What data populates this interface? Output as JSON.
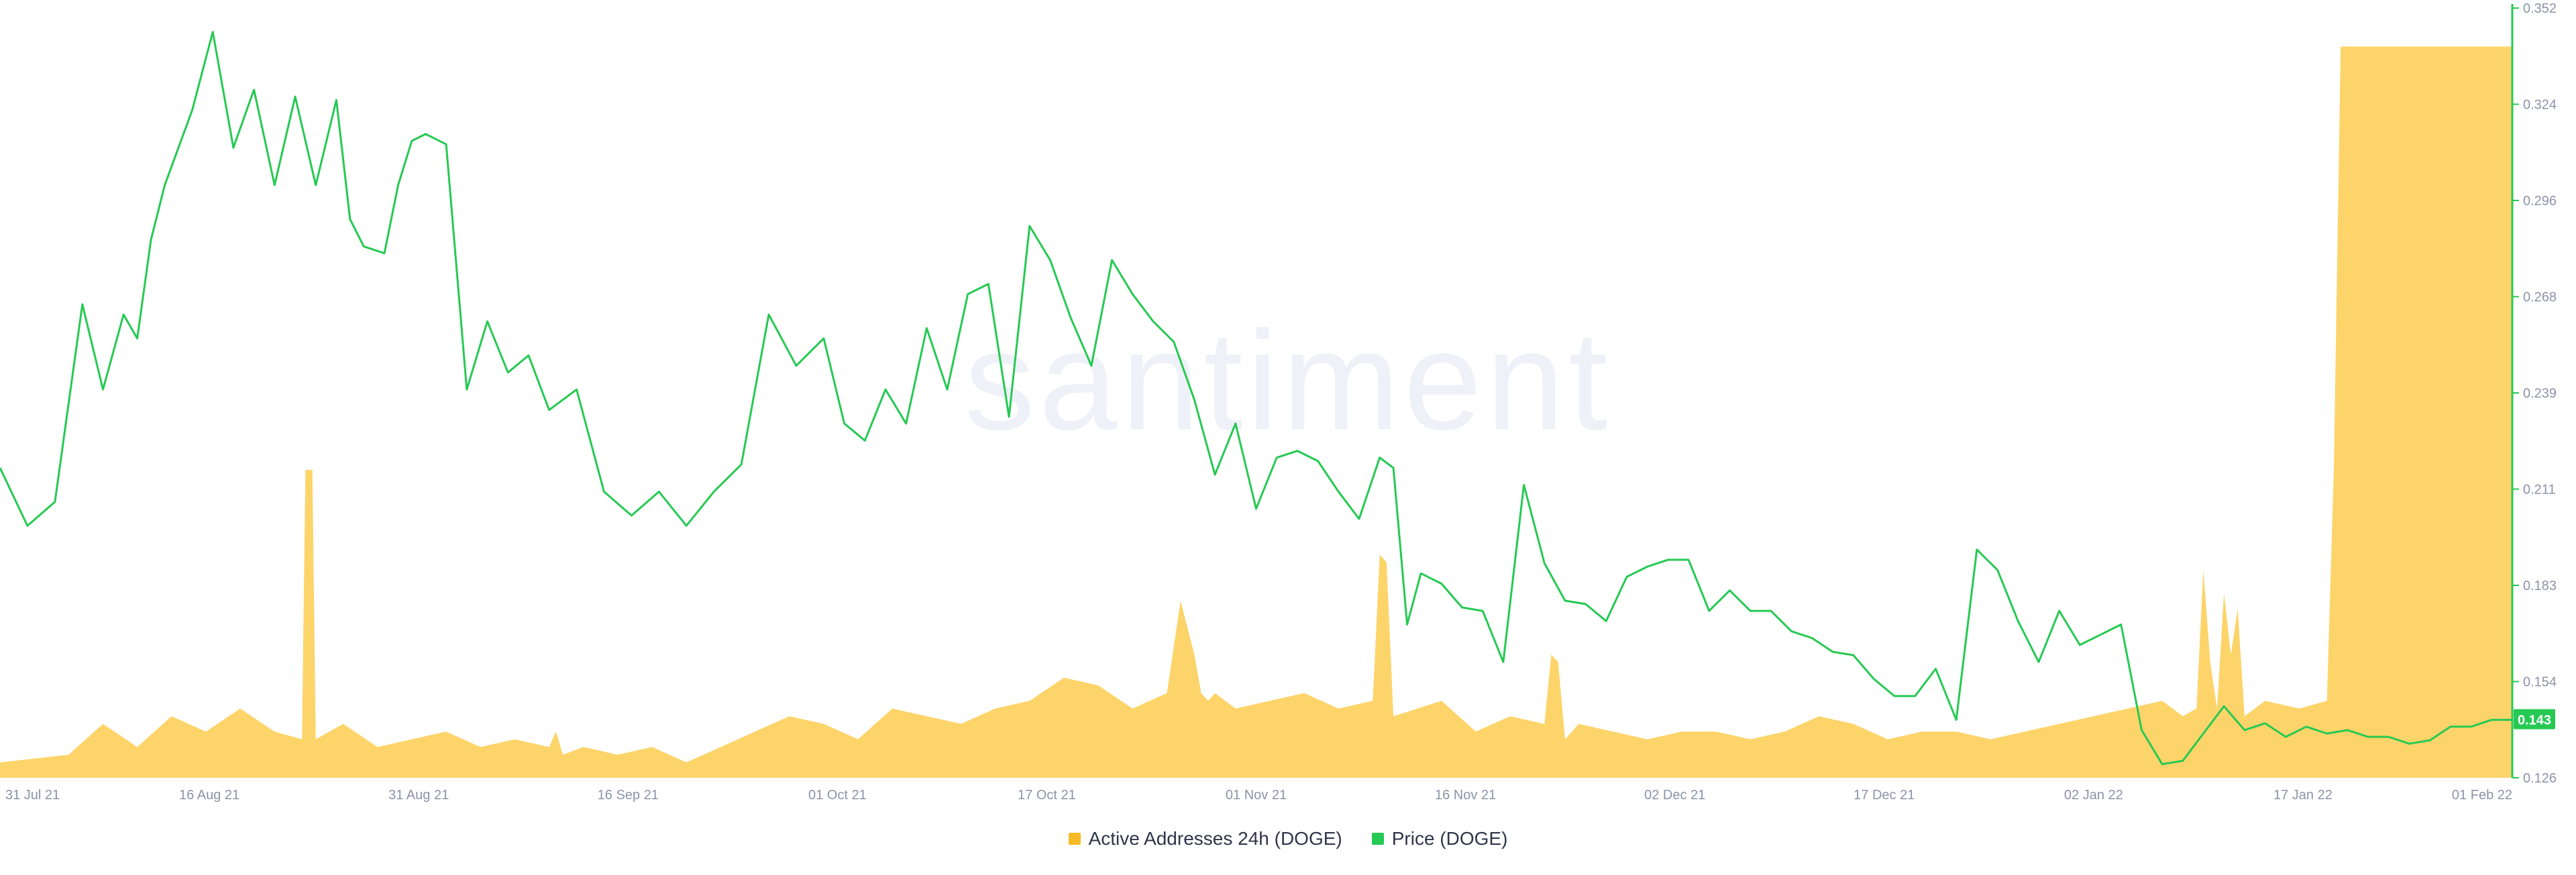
{
  "chart_data": {
    "type": "area",
    "watermark": "santiment",
    "x_ticks": [
      "31 Jul 21",
      "16 Aug 21",
      "31 Aug 21",
      "16 Sep 21",
      "01 Oct 21",
      "17 Oct 21",
      "01 Nov 21",
      "16 Nov 21",
      "02 Dec 21",
      "17 Dec 21",
      "02 Jan 22",
      "17 Jan 22",
      "01 Feb 22"
    ],
    "y_right_ticks": [
      "0.352",
      "0.324",
      "0.296",
      "0.268",
      "0.239",
      "0.211",
      "0.183",
      "0.154",
      "0.126"
    ],
    "y_right_range": [
      0.126,
      0.352
    ],
    "active_addresses_ylim": [
      0,
      100
    ],
    "current_price_label": "0.143",
    "legend": [
      {
        "label": "Active Addresses 24h (DOGE)",
        "color": "#f7b924"
      },
      {
        "label": "Price (DOGE)",
        "color": "#26c953"
      }
    ],
    "colors": {
      "price": "#26c953",
      "active_addresses": "#fdd46a",
      "axis_price": "#26c953",
      "tick_text": "#8b93a7"
    },
    "series": [
      {
        "name": "Price (DOGE)",
        "axis": "right",
        "x": [
          0,
          4,
          8,
          12,
          15,
          18,
          20,
          22,
          24,
          28,
          31,
          34,
          37,
          40,
          43,
          46,
          49,
          51,
          53,
          56,
          58,
          60,
          62,
          65,
          68,
          71,
          74,
          77,
          80,
          84,
          88,
          92,
          96,
          100,
          104,
          108,
          112,
          116,
          120,
          123,
          126,
          129,
          132,
          135,
          138,
          141,
          144,
          147,
          150,
          153,
          156,
          159,
          162,
          165,
          168,
          171,
          174,
          177,
          180,
          183,
          186
        ],
        "values": [
          0.217,
          0.2,
          0.207,
          0.265,
          0.24,
          0.262,
          0.255,
          0.284,
          0.3,
          0.322,
          0.345,
          0.311,
          0.328,
          0.3,
          0.326,
          0.3,
          0.325,
          0.29,
          0.282,
          0.28,
          0.3,
          0.313,
          0.315,
          0.312,
          0.24,
          0.26,
          0.245,
          0.25,
          0.234,
          0.24,
          0.21,
          0.203,
          0.21,
          0.2,
          0.21,
          0.218,
          0.262,
          0.247,
          0.255,
          0.23,
          0.225,
          0.24,
          0.23,
          0.258,
          0.24,
          0.268,
          0.271,
          0.232,
          0.288,
          0.278,
          0.261,
          0.247,
          0.278,
          0.268,
          0.26,
          0.254,
          0.237,
          0.215,
          0.23,
          0.205,
          0.22
        ],
        "values_cont_x": [
          189,
          192,
          195,
          198,
          201,
          203,
          205,
          207,
          210,
          213,
          216,
          219,
          222,
          225,
          228,
          231,
          234,
          237,
          240,
          243,
          246,
          249,
          252,
          255,
          258,
          261,
          264,
          267,
          270,
          273,
          276,
          279,
          282,
          285,
          288,
          291,
          294,
          297,
          300,
          303,
          306,
          309,
          312,
          315,
          318,
          321,
          324,
          327,
          330,
          333,
          336,
          339,
          342,
          345,
          348,
          351,
          354,
          357,
          360,
          363,
          366
        ],
        "values_cont": [
          0.222,
          0.219,
          0.21,
          0.202,
          0.22,
          0.217,
          0.171,
          0.186,
          0.183,
          0.176,
          0.175,
          0.16,
          0.212,
          0.189,
          0.178,
          0.177,
          0.172,
          0.185,
          0.188,
          0.19,
          0.19,
          0.175,
          0.181,
          0.175,
          0.175,
          0.169,
          0.167,
          0.163,
          0.162,
          0.155,
          0.15,
          0.15,
          0.158,
          0.143,
          0.193,
          0.187,
          0.172,
          0.16,
          0.175,
          0.165,
          0.168,
          0.171,
          0.14,
          0.13,
          0.131,
          0.139,
          0.147,
          0.14,
          0.142,
          0.138,
          0.141,
          0.139,
          0.14,
          0.138,
          0.138,
          0.136,
          0.137,
          0.141,
          0.141,
          0.143,
          0.143
        ]
      },
      {
        "name": "Active Addresses 24h (DOGE)",
        "axis": "hidden",
        "x": [
          0,
          10,
          15,
          20,
          25,
          30,
          35,
          40,
          44,
          44.5,
          45.5,
          46,
          50,
          55,
          60,
          65,
          70,
          75,
          80,
          81,
          82,
          85,
          90,
          95,
          100,
          105,
          110,
          115,
          120,
          125,
          130,
          135,
          140,
          145,
          150,
          155,
          160,
          165,
          170,
          172,
          174,
          175,
          176,
          177,
          180,
          190,
          195,
          200,
          201,
          202,
          203,
          210,
          215,
          220,
          225,
          226,
          227,
          228,
          230,
          235,
          240,
          245,
          250,
          255,
          260,
          265,
          270,
          275,
          280,
          285,
          290,
          295,
          300,
          305,
          310,
          315,
          318,
          320,
          321,
          322,
          323,
          324,
          325,
          326,
          327,
          330,
          335,
          339,
          340,
          341,
          345,
          350,
          355,
          360,
          362,
          365,
          366
        ],
        "values": [
          2,
          3,
          7,
          4,
          8,
          6,
          9,
          6,
          5,
          40,
          40,
          5,
          7,
          4,
          5,
          6,
          4,
          5,
          4,
          6,
          3,
          4,
          3,
          4,
          2,
          4,
          6,
          8,
          7,
          5,
          9,
          8,
          7,
          9,
          10,
          13,
          12,
          9,
          11,
          23,
          16,
          11,
          10,
          11,
          9,
          11,
          9,
          10,
          29,
          28,
          8,
          10,
          6,
          8,
          7,
          16,
          15,
          5,
          7,
          6,
          5,
          6,
          6,
          5,
          6,
          8,
          7,
          5,
          6,
          6,
          5,
          6,
          7,
          8,
          9,
          10,
          8,
          9,
          27,
          15,
          9,
          24,
          16,
          22,
          8,
          10,
          9,
          10,
          40,
          95,
          95,
          95,
          95,
          95,
          95,
          95,
          95
        ]
      }
    ]
  },
  "legend_labels": {
    "addresses": "Active Addresses 24h (DOGE)",
    "price": "Price (DOGE)"
  }
}
